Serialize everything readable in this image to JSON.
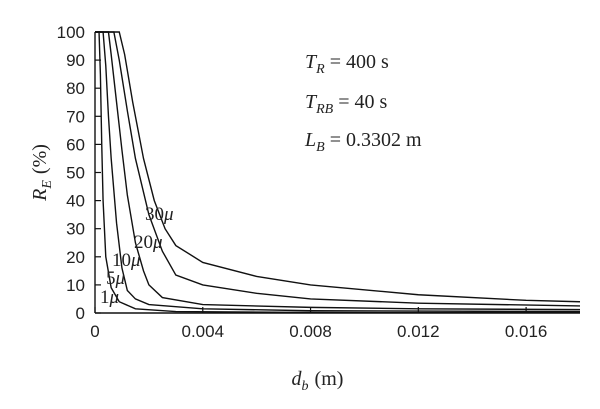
{
  "chart_data": {
    "type": "line",
    "x_axis": {
      "label_symbol": "d",
      "label_sub": "b",
      "label_unit": "(m)",
      "range": [
        0,
        0.018
      ],
      "ticks": [
        0,
        0.004,
        0.008,
        0.012,
        0.016
      ],
      "tick_labels": [
        "0",
        "0.004",
        "0.008",
        "0.012",
        "0.016"
      ]
    },
    "y_axis": {
      "label_symbol": "R",
      "label_sub": "E",
      "label_unit": "(%)",
      "range": [
        0,
        100
      ],
      "ticks": [
        0,
        10,
        20,
        30,
        40,
        50,
        60,
        70,
        80,
        90,
        100
      ],
      "tick_labels": [
        "0",
        "10",
        "20",
        "30",
        "40",
        "50",
        "60",
        "70",
        "80",
        "90",
        "100"
      ]
    },
    "grid": false,
    "annotations": [
      {
        "sym": "T",
        "sub": "R",
        "val": " = 400 s"
      },
      {
        "sym": "T",
        "sub": "RB",
        "val": " = 40 s"
      },
      {
        "sym": "L",
        "sub": "B",
        "val": " = 0.3302 m"
      }
    ],
    "series": [
      {
        "name": "1μ",
        "label_num": "1",
        "label_unit": "μ",
        "points": [
          [
            0,
            100
          ],
          [
            0.00015,
            100
          ],
          [
            0.0002,
            85
          ],
          [
            0.00025,
            60
          ],
          [
            0.0003,
            40
          ],
          [
            0.0004,
            20
          ],
          [
            0.0006,
            9
          ],
          [
            0.0009,
            4
          ],
          [
            0.0015,
            1.5
          ],
          [
            0.003,
            0.5
          ],
          [
            0.008,
            0.2
          ],
          [
            0.018,
            0.1
          ]
        ]
      },
      {
        "name": "5μ",
        "label_num": "5",
        "label_unit": "μ",
        "points": [
          [
            0,
            100
          ],
          [
            0.0003,
            100
          ],
          [
            0.0004,
            88
          ],
          [
            0.0005,
            70
          ],
          [
            0.0006,
            55
          ],
          [
            0.0008,
            32
          ],
          [
            0.001,
            16
          ],
          [
            0.0012,
            8
          ],
          [
            0.0015,
            5
          ],
          [
            0.002,
            3
          ],
          [
            0.004,
            1.5
          ],
          [
            0.008,
            0.8
          ],
          [
            0.018,
            0.5
          ]
        ]
      },
      {
        "name": "10μ",
        "label_num": "10",
        "label_unit": "μ",
        "points": [
          [
            0,
            100
          ],
          [
            0.0005,
            100
          ],
          [
            0.0006,
            92
          ],
          [
            0.0008,
            75
          ],
          [
            0.001,
            58
          ],
          [
            0.0012,
            42
          ],
          [
            0.0015,
            25
          ],
          [
            0.0018,
            15
          ],
          [
            0.002,
            10
          ],
          [
            0.0025,
            5.5
          ],
          [
            0.004,
            3
          ],
          [
            0.008,
            2
          ],
          [
            0.012,
            1.5
          ],
          [
            0.018,
            1.2
          ]
        ]
      },
      {
        "name": "20μ",
        "label_num": "20",
        "label_unit": "μ",
        "points": [
          [
            0,
            100
          ],
          [
            0.0007,
            100
          ],
          [
            0.0009,
            90
          ],
          [
            0.0012,
            72
          ],
          [
            0.0015,
            55
          ],
          [
            0.002,
            35
          ],
          [
            0.0025,
            22
          ],
          [
            0.003,
            13.5
          ],
          [
            0.004,
            10
          ],
          [
            0.006,
            7
          ],
          [
            0.008,
            5
          ],
          [
            0.012,
            3.5
          ],
          [
            0.018,
            2.5
          ]
        ]
      },
      {
        "name": "30μ",
        "label_num": "30",
        "label_unit": "μ",
        "points": [
          [
            0,
            100
          ],
          [
            0.0009,
            100
          ],
          [
            0.0011,
            92
          ],
          [
            0.0014,
            75
          ],
          [
            0.0018,
            55
          ],
          [
            0.0022,
            40
          ],
          [
            0.0026,
            30
          ],
          [
            0.003,
            24
          ],
          [
            0.004,
            18
          ],
          [
            0.006,
            13
          ],
          [
            0.008,
            10
          ],
          [
            0.012,
            6.5
          ],
          [
            0.016,
            4.5
          ],
          [
            0.018,
            4
          ]
        ]
      }
    ]
  }
}
